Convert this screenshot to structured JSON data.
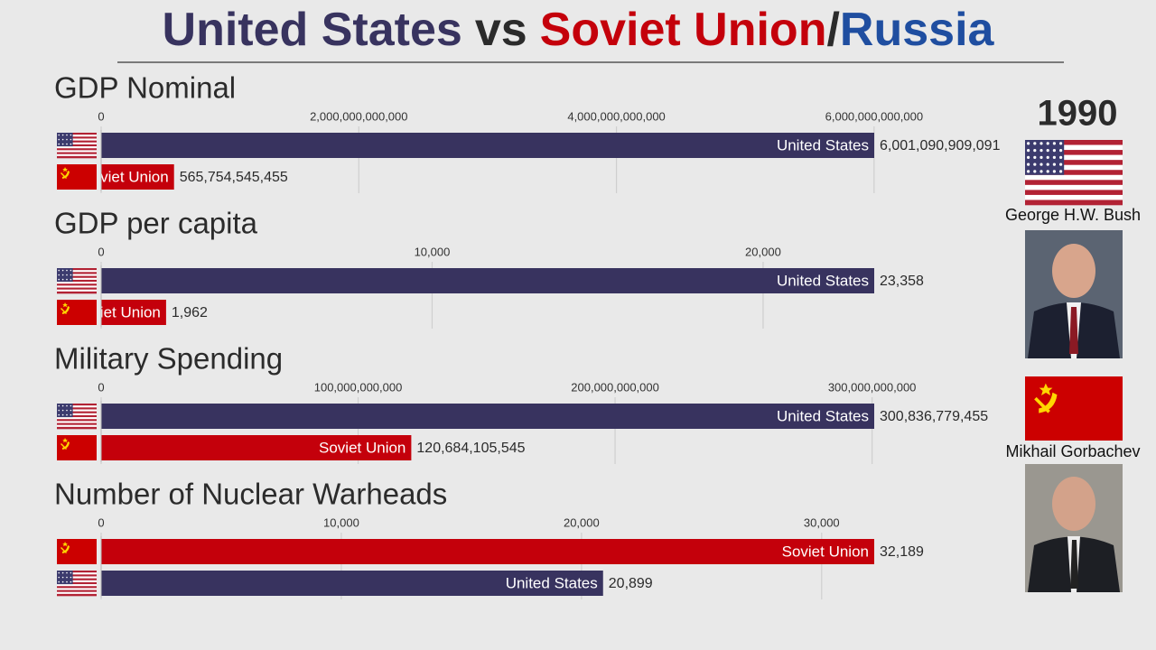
{
  "title": [
    {
      "text": "United States",
      "color": "#38335f"
    },
    {
      "text": "vs",
      "color": "#2b2b2b"
    },
    {
      "text": "Soviet Union",
      "color": "#c4000b"
    },
    {
      "text": "/",
      "color": "#2b2b2b"
    },
    {
      "text": "Russia",
      "color": "#1f4ea0"
    }
  ],
  "year": 1990,
  "leaders": [
    "George H.W. Bush",
    "Mikhail Gorbachev"
  ],
  "chart_data": [
    {
      "type": "bar",
      "orientation": "horizontal",
      "title": "GDP Nominal",
      "categories": [
        "United States",
        "Soviet Union"
      ],
      "values": [
        6001090909091,
        565754545455
      ],
      "value_labels": [
        "6,001,090,909,091",
        "565,754,545,455"
      ],
      "colors": [
        "#38335f",
        "#c4000b"
      ],
      "xlim": [
        0,
        6001090909091
      ],
      "xticks": [
        0,
        {
          "value": 2000000000000,
          "label": "2,000,000,000,000"
        },
        {
          "value": 4000000000000,
          "label": "4,000,000,000,000"
        },
        {
          "value": 6000000000000,
          "label": "6,000,000,000,000"
        }
      ],
      "grid": true
    },
    {
      "type": "bar",
      "orientation": "horizontal",
      "title": "GDP per capita",
      "categories": [
        "United States",
        "Soviet Union"
      ],
      "values": [
        23358,
        1962
      ],
      "value_labels": [
        "23,358",
        "1,962"
      ],
      "colors": [
        "#38335f",
        "#c4000b"
      ],
      "xlim": [
        0,
        23358
      ],
      "xticks": [
        0,
        {
          "value": 10000,
          "label": "10,000"
        },
        {
          "value": 20000,
          "label": "20,000"
        }
      ],
      "grid": true
    },
    {
      "type": "bar",
      "orientation": "horizontal",
      "title": "Military Spending",
      "categories": [
        "United States",
        "Soviet Union"
      ],
      "values": [
        300836779455,
        120684105545
      ],
      "value_labels": [
        "300,836,779,455",
        "120,684,105,545"
      ],
      "colors": [
        "#38335f",
        "#c4000b"
      ],
      "xlim": [
        0,
        300836779455
      ],
      "xticks": [
        0,
        {
          "value": 100000000000,
          "label": "100,000,000,000"
        },
        {
          "value": 200000000000,
          "label": "200,000,000,000"
        },
        {
          "value": 300000000000,
          "label": "300,000,000,000"
        }
      ],
      "grid": true
    },
    {
      "type": "bar",
      "orientation": "horizontal",
      "title": "Number of Nuclear Warheads",
      "categories": [
        "Soviet Union",
        "United States"
      ],
      "values": [
        32189,
        20899
      ],
      "value_labels": [
        "32,189",
        "20,899"
      ],
      "colors": [
        "#c4000b",
        "#38335f"
      ],
      "xlim": [
        0,
        32189
      ],
      "xticks": [
        0,
        {
          "value": 10000,
          "label": "10,000"
        },
        {
          "value": 20000,
          "label": "20,000"
        },
        {
          "value": 30000,
          "label": "30,000"
        }
      ],
      "grid": true
    }
  ]
}
